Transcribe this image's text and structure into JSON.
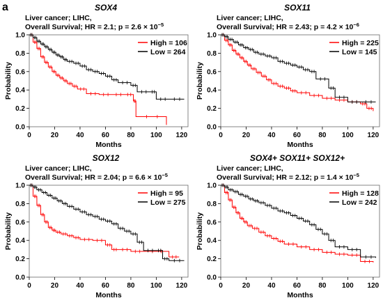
{
  "figure_label": "a",
  "colors": {
    "high": "#ff0000",
    "low": "#000000",
    "axis": "#000000",
    "frame": "#666666"
  },
  "chart_data": [
    {
      "type": "line",
      "title": "SOX4",
      "subtitle_line1": "Liver cancer; LIHC,",
      "subtitle_line2": "Overall Survival; HR = 2.1; p = 2.6 × 10",
      "subtitle_exp": "−5",
      "xlabel": "Months",
      "ylabel": "Probability",
      "xlim": [
        0,
        125
      ],
      "ylim": [
        0,
        1.0
      ],
      "xticks": [
        0,
        20,
        40,
        60,
        80,
        100,
        120
      ],
      "yticks": [
        0.0,
        0.2,
        0.4,
        0.6,
        0.8,
        1.0
      ],
      "legend_position": "top-right",
      "series": [
        {
          "name": "High = 106",
          "color_key": "high",
          "x": [
            0,
            3,
            6,
            9,
            12,
            15,
            18,
            21,
            24,
            27,
            30,
            34,
            38,
            45,
            55,
            65,
            75,
            82,
            84,
            108
          ],
          "y": [
            1.0,
            0.92,
            0.85,
            0.76,
            0.7,
            0.65,
            0.6,
            0.56,
            0.53,
            0.5,
            0.47,
            0.44,
            0.41,
            0.36,
            0.35,
            0.35,
            0.35,
            0.28,
            0.11,
            0.02
          ]
        },
        {
          "name": "Low = 264",
          "color_key": "low",
          "x": [
            0,
            3,
            6,
            9,
            12,
            15,
            18,
            21,
            24,
            27,
            30,
            35,
            40,
            45,
            50,
            55,
            60,
            65,
            70,
            80,
            85,
            95,
            100,
            110,
            122
          ],
          "y": [
            1.0,
            0.97,
            0.93,
            0.9,
            0.87,
            0.84,
            0.81,
            0.78,
            0.76,
            0.73,
            0.71,
            0.69,
            0.66,
            0.62,
            0.6,
            0.58,
            0.55,
            0.51,
            0.48,
            0.45,
            0.38,
            0.38,
            0.3,
            0.3,
            0.3
          ]
        }
      ]
    },
    {
      "type": "line",
      "title": "SOX11",
      "subtitle_line1": "Liver cancer; LIHC,",
      "subtitle_line2": "Overall Survival; HR = 2.43; p = 4.2 × 10",
      "subtitle_exp": "−6",
      "xlabel": "Months",
      "ylabel": "Probability",
      "xlim": [
        0,
        125
      ],
      "ylim": [
        0,
        1.0
      ],
      "xticks": [
        0,
        20,
        40,
        60,
        80,
        100,
        120
      ],
      "yticks": [
        0.0,
        0.2,
        0.4,
        0.6,
        0.8,
        1.0
      ],
      "legend_position": "top-right",
      "series": [
        {
          "name": "High = 225",
          "color_key": "high",
          "x": [
            0,
            3,
            6,
            9,
            12,
            15,
            18,
            21,
            24,
            28,
            32,
            36,
            40,
            45,
            50,
            55,
            60,
            70,
            80,
            90,
            100,
            110,
            115,
            120
          ],
          "y": [
            1.0,
            0.94,
            0.89,
            0.83,
            0.79,
            0.75,
            0.71,
            0.67,
            0.63,
            0.59,
            0.55,
            0.51,
            0.47,
            0.44,
            0.42,
            0.39,
            0.37,
            0.34,
            0.31,
            0.29,
            0.27,
            0.25,
            0.2,
            0.17
          ]
        },
        {
          "name": "Low = 145",
          "color_key": "low",
          "x": [
            0,
            3,
            6,
            10,
            14,
            18,
            22,
            26,
            30,
            35,
            40,
            45,
            50,
            55,
            60,
            65,
            70,
            75,
            85,
            90,
            100,
            110,
            122
          ],
          "y": [
            1.0,
            0.98,
            0.95,
            0.92,
            0.89,
            0.86,
            0.84,
            0.81,
            0.79,
            0.77,
            0.75,
            0.71,
            0.69,
            0.67,
            0.65,
            0.62,
            0.6,
            0.52,
            0.42,
            0.32,
            0.27,
            0.27,
            0.27
          ]
        }
      ]
    },
    {
      "type": "line",
      "title": "SOX12",
      "subtitle_line1": "Liver cancer; LIHC,",
      "subtitle_line2": "Overall Survival; HR = 2.04; p = 6.6 × 10",
      "subtitle_exp": "−5",
      "xlabel": "Months",
      "ylabel": "Probability",
      "xlim": [
        0,
        125
      ],
      "ylim": [
        0,
        1.0
      ],
      "xticks": [
        0,
        20,
        40,
        60,
        80,
        100,
        120
      ],
      "yticks": [
        0.0,
        0.2,
        0.4,
        0.6,
        0.8,
        1.0
      ],
      "legend_position": "top-right",
      "series": [
        {
          "name": "High = 95",
          "color_key": "high",
          "x": [
            0,
            3,
            6,
            9,
            12,
            15,
            18,
            21,
            25,
            30,
            35,
            40,
            50,
            60,
            65,
            70,
            80,
            90,
            110,
            118
          ],
          "y": [
            1.0,
            0.88,
            0.78,
            0.68,
            0.6,
            0.54,
            0.51,
            0.49,
            0.47,
            0.45,
            0.43,
            0.41,
            0.4,
            0.35,
            0.3,
            0.3,
            0.28,
            0.28,
            0.22,
            0.22
          ]
        },
        {
          "name": "Low = 275",
          "color_key": "low",
          "x": [
            0,
            3,
            6,
            10,
            14,
            18,
            22,
            26,
            30,
            35,
            40,
            45,
            50,
            55,
            60,
            65,
            70,
            75,
            80,
            85,
            90,
            100,
            105,
            110,
            122
          ],
          "y": [
            1.0,
            0.98,
            0.95,
            0.92,
            0.89,
            0.86,
            0.83,
            0.8,
            0.77,
            0.74,
            0.71,
            0.68,
            0.66,
            0.63,
            0.61,
            0.58,
            0.53,
            0.5,
            0.47,
            0.38,
            0.29,
            0.29,
            0.2,
            0.18,
            0.18
          ]
        }
      ]
    },
    {
      "type": "line",
      "title": "SOX4+ SOX11+ SOX12+",
      "subtitle_line1": "Liver cancer; LIHC,",
      "subtitle_line2": "Overall Survival; HR = 2.12; p = 1.4 × 10",
      "subtitle_exp": "−5",
      "xlabel": "Months",
      "ylabel": "Probability",
      "xlim": [
        0,
        125
      ],
      "ylim": [
        0,
        1.0
      ],
      "xticks": [
        0,
        20,
        40,
        60,
        80,
        100,
        120
      ],
      "yticks": [
        0.0,
        0.2,
        0.4,
        0.6,
        0.8,
        1.0
      ],
      "legend_position": "top-right",
      "series": [
        {
          "name": "High = 128",
          "color_key": "high",
          "x": [
            0,
            3,
            6,
            9,
            12,
            15,
            18,
            21,
            25,
            30,
            35,
            40,
            45,
            50,
            60,
            70,
            80,
            90,
            100,
            110,
            120
          ],
          "y": [
            1.0,
            0.92,
            0.84,
            0.76,
            0.7,
            0.64,
            0.6,
            0.56,
            0.53,
            0.49,
            0.45,
            0.42,
            0.39,
            0.36,
            0.33,
            0.3,
            0.27,
            0.25,
            0.24,
            0.17,
            0.16
          ]
        },
        {
          "name": "Low = 242",
          "color_key": "low",
          "x": [
            0,
            3,
            6,
            10,
            14,
            18,
            22,
            26,
            30,
            35,
            40,
            45,
            50,
            55,
            60,
            65,
            70,
            75,
            80,
            85,
            90,
            100,
            110,
            122
          ],
          "y": [
            1.0,
            0.98,
            0.95,
            0.93,
            0.9,
            0.88,
            0.85,
            0.83,
            0.81,
            0.78,
            0.75,
            0.72,
            0.7,
            0.67,
            0.64,
            0.61,
            0.57,
            0.52,
            0.47,
            0.4,
            0.33,
            0.3,
            0.22,
            0.21
          ]
        }
      ]
    }
  ]
}
